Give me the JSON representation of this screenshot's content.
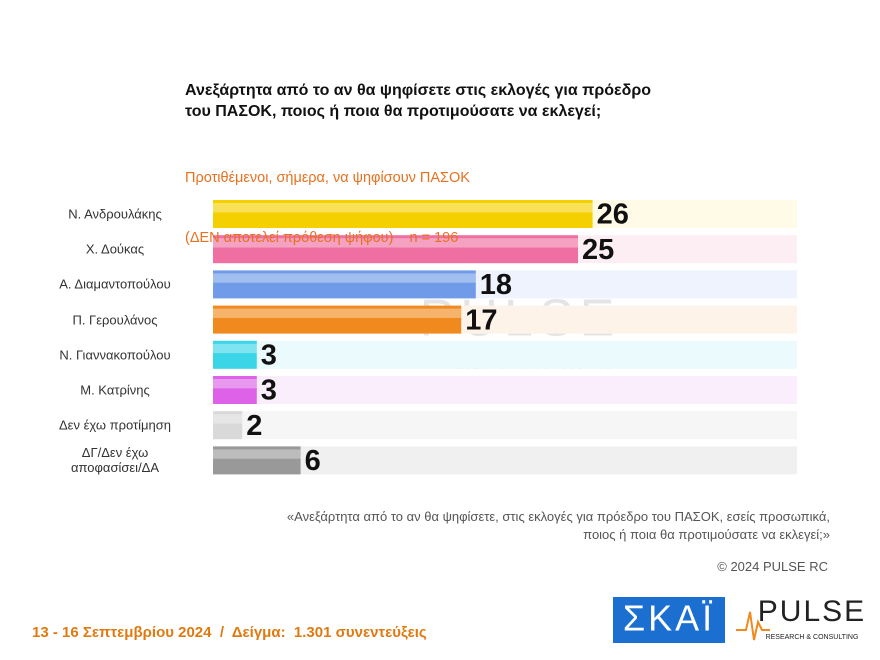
{
  "chart_data": {
    "type": "bar",
    "orientation": "horizontal",
    "title": [
      "Ανεξάρτητα από το αν θα ψηφίσετε στις εκλογές για πρόεδρο",
      "του ΠΑΣΟΚ, ποιος ή ποια θα προτιμούσατε να εκλεγεί;"
    ],
    "subtitle": [
      "Προτιθέμενοι, σήμερα, να ψηφίσουν ΠΑΣΟΚ",
      "(ΔΕΝ αποτελεί πρόθεση ψήφου)    n = 196"
    ],
    "categories": [
      "Ν. Ανδρουλάκης",
      "Χ. Δούκας",
      "Α. Διαμαντοπούλου",
      "Π. Γερουλάνος",
      "Ν. Γιαννακοπούλου",
      "Μ. Κατρίνης",
      "Δεν έχω προτίμηση",
      "ΔΓ/Δεν έχω αποφασίσει/ΔΑ"
    ],
    "values": [
      26,
      25,
      18,
      17,
      3,
      3,
      2,
      6
    ],
    "colors": [
      "#f5d000",
      "#f06fa2",
      "#6f9be8",
      "#f08a1e",
      "#3ad6e8",
      "#de62e8",
      "#d9d9d9",
      "#999999"
    ],
    "track_colors": [
      "#fffbe6",
      "#fdeef4",
      "#eef3fd",
      "#fef3e8",
      "#ebfbfd",
      "#fbeefc",
      "#f6f6f6",
      "#f0f0f0"
    ],
    "xlim": [
      0,
      40
    ],
    "footnote": [
      "«Ανεξάρτητα από το αν θα ψηφίσετε, στις εκλογές για πρόεδρο του ΠΑΣΟΚ, εσείς προσωπικά,",
      "ποιος ή ποια θα προτιμούσατε να εκλεγεί;»"
    ],
    "copyright": "© 2024 PULSE RC",
    "footer": "13 - 16 Σεπτεμβρίου 2024  /  Δείγμα:  1.301 συνεντεύξεις",
    "watermark": {
      "name": "PULSE",
      "tagline": "RESEARCH & CONSULTING"
    },
    "logos": {
      "skai": "ΣΚΑΪ",
      "pulse": "PULSE",
      "pulse_tagline": "RESEARCH & CONSULTING"
    }
  }
}
